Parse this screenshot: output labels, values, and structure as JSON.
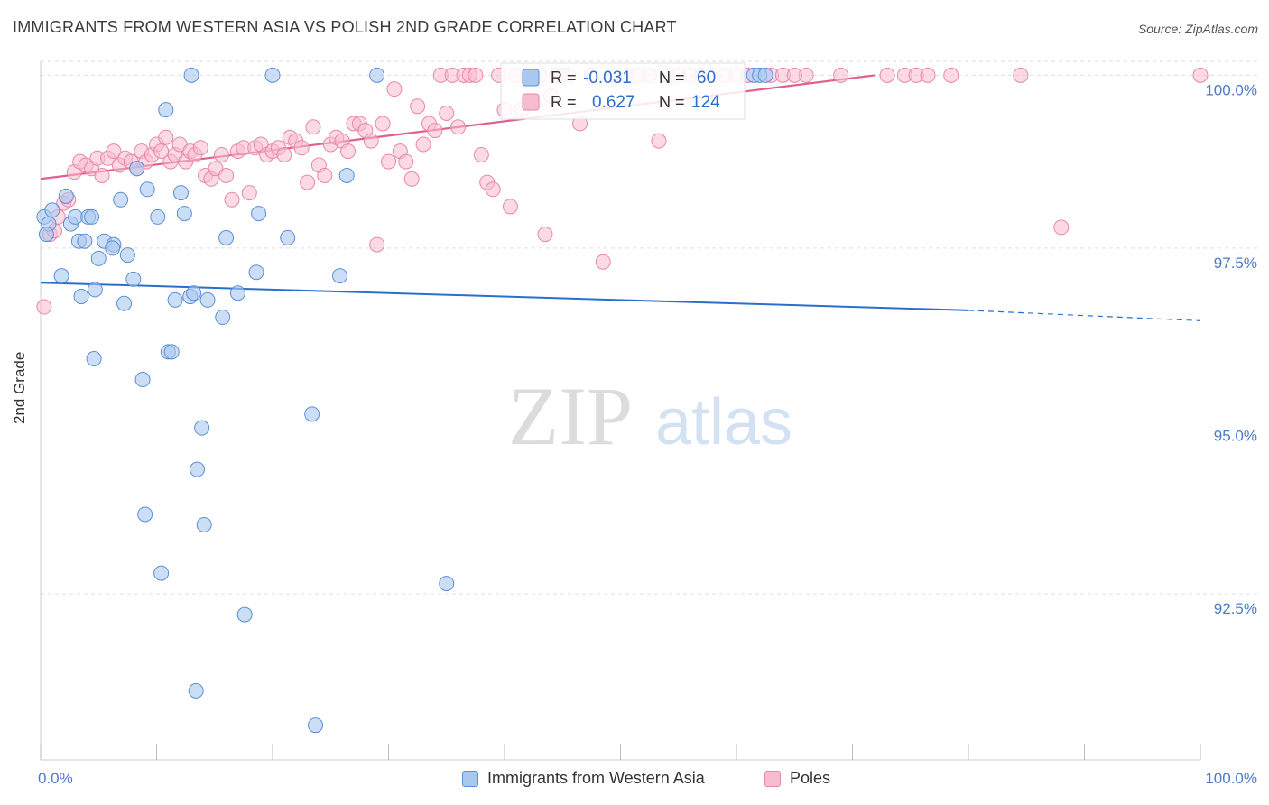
{
  "title": "IMMIGRANTS FROM WESTERN ASIA VS POLISH 2ND GRADE CORRELATION CHART",
  "source": "Source: ZipAtlas.com",
  "watermark": {
    "zip": "ZIP",
    "atlas": "atlas"
  },
  "colors": {
    "blue_fill": "#a9c8f0",
    "blue_stroke": "#5b8fd6",
    "blue_line": "#2a6fcc",
    "pink_fill": "#f8bcd0",
    "pink_stroke": "#e887a8",
    "pink_line": "#e0608f",
    "axis_text": "#4a7cc9",
    "grid": "#dddddd"
  },
  "legend": {
    "row1": {
      "r_label": "R =",
      "r_value": "-0.031",
      "n_label": "N =",
      "n_value": "60"
    },
    "row2": {
      "r_label": "R =",
      "r_value": "0.627",
      "n_label": "N =",
      "n_value": "124"
    }
  },
  "chart_data": {
    "type": "scatter",
    "title": "IMMIGRANTS FROM WESTERN ASIA VS POLISH 2ND GRADE CORRELATION CHART",
    "xlabel": "",
    "ylabel": "2nd Grade",
    "xlim": [
      0,
      100
    ],
    "ylim": [
      90.1,
      100.2
    ],
    "x_tick_labels": [
      "0.0%",
      "100.0%"
    ],
    "y_ticks": [
      92.5,
      95.0,
      97.5,
      100.0
    ],
    "y_tick_labels": [
      "92.5%",
      "95.0%",
      "97.5%",
      "100.0%"
    ],
    "series": [
      {
        "name": "Immigrants from Western Asia",
        "color": "blue",
        "trend": {
          "x0": 0,
          "y0": 97.0,
          "x1": 80,
          "y1": 96.6,
          "dash_to_x": 100,
          "dash_to_y": 96.45
        },
        "points": [
          [
            0.3,
            97.95
          ],
          [
            0.7,
            97.85
          ],
          [
            1.0,
            98.05
          ],
          [
            1.8,
            97.1
          ],
          [
            2.2,
            98.25
          ],
          [
            2.6,
            97.85
          ],
          [
            3.0,
            97.95
          ],
          [
            3.3,
            97.6
          ],
          [
            3.5,
            96.8
          ],
          [
            3.8,
            97.6
          ],
          [
            4.1,
            97.95
          ],
          [
            4.4,
            97.95
          ],
          [
            4.7,
            96.9
          ],
          [
            5.0,
            97.35
          ],
          [
            4.6,
            95.9
          ],
          [
            5.5,
            97.6
          ],
          [
            6.3,
            97.55
          ],
          [
            6.9,
            98.2
          ],
          [
            6.2,
            97.5
          ],
          [
            7.2,
            96.7
          ],
          [
            7.5,
            97.4
          ],
          [
            8.0,
            97.05
          ],
          [
            8.3,
            98.65
          ],
          [
            8.8,
            95.6
          ],
          [
            9.2,
            98.35
          ],
          [
            9.0,
            93.65
          ],
          [
            10.1,
            97.95
          ],
          [
            10.4,
            92.8
          ],
          [
            10.8,
            99.5
          ],
          [
            11.0,
            96.0
          ],
          [
            11.3,
            96.0
          ],
          [
            11.6,
            96.75
          ],
          [
            12.1,
            98.3
          ],
          [
            12.4,
            98.0
          ],
          [
            12.9,
            96.8
          ],
          [
            13.2,
            96.85
          ],
          [
            13.5,
            94.3
          ],
          [
            13.9,
            94.9
          ],
          [
            14.1,
            93.5
          ],
          [
            14.4,
            96.75
          ],
          [
            13.0,
            100.0
          ],
          [
            13.4,
            91.1
          ],
          [
            15.7,
            96.5
          ],
          [
            16.0,
            97.65
          ],
          [
            17.0,
            96.85
          ],
          [
            17.6,
            92.2
          ],
          [
            18.6,
            97.15
          ],
          [
            18.8,
            98.0
          ],
          [
            20.0,
            100.0
          ],
          [
            21.3,
            97.65
          ],
          [
            23.4,
            95.1
          ],
          [
            23.7,
            90.6
          ],
          [
            25.8,
            97.1
          ],
          [
            26.4,
            98.55
          ],
          [
            29.0,
            100.0
          ],
          [
            35.0,
            92.65
          ],
          [
            61.5,
            100.0
          ],
          [
            62.0,
            100.0
          ],
          [
            62.5,
            100.0
          ],
          [
            0.5,
            97.7
          ]
        ]
      },
      {
        "name": "Poles",
        "color": "pink",
        "trend": {
          "x0": 0,
          "y0": 98.5,
          "x1": 72,
          "y1": 100.0
        },
        "points": [
          [
            0.3,
            96.65
          ],
          [
            0.8,
            97.7
          ],
          [
            1.2,
            97.75
          ],
          [
            1.5,
            97.95
          ],
          [
            2.0,
            98.15
          ],
          [
            2.4,
            98.2
          ],
          [
            2.9,
            98.6
          ],
          [
            3.4,
            98.75
          ],
          [
            3.9,
            98.7
          ],
          [
            4.4,
            98.65
          ],
          [
            4.9,
            98.8
          ],
          [
            5.3,
            98.55
          ],
          [
            5.8,
            98.8
          ],
          [
            6.3,
            98.9
          ],
          [
            6.8,
            98.7
          ],
          [
            7.3,
            98.8
          ],
          [
            7.8,
            98.75
          ],
          [
            8.3,
            98.65
          ],
          [
            8.7,
            98.9
          ],
          [
            9.1,
            98.75
          ],
          [
            9.6,
            98.85
          ],
          [
            10.0,
            99.0
          ],
          [
            10.4,
            98.9
          ],
          [
            10.8,
            99.1
          ],
          [
            11.2,
            98.75
          ],
          [
            11.6,
            98.85
          ],
          [
            12.0,
            99.0
          ],
          [
            12.5,
            98.75
          ],
          [
            12.9,
            98.9
          ],
          [
            13.3,
            98.85
          ],
          [
            13.8,
            98.95
          ],
          [
            14.2,
            98.55
          ],
          [
            14.7,
            98.5
          ],
          [
            15.1,
            98.65
          ],
          [
            15.6,
            98.85
          ],
          [
            16.0,
            98.55
          ],
          [
            16.5,
            98.2
          ],
          [
            17.0,
            98.9
          ],
          [
            17.5,
            98.95
          ],
          [
            18.0,
            98.3
          ],
          [
            18.5,
            98.95
          ],
          [
            19.0,
            99.0
          ],
          [
            19.5,
            98.85
          ],
          [
            20.0,
            98.9
          ],
          [
            20.5,
            98.95
          ],
          [
            21.0,
            98.85
          ],
          [
            21.5,
            99.1
          ],
          [
            22.0,
            99.05
          ],
          [
            22.5,
            98.95
          ],
          [
            23.0,
            98.45
          ],
          [
            23.5,
            99.25
          ],
          [
            24.0,
            98.7
          ],
          [
            24.5,
            98.55
          ],
          [
            25.0,
            99.0
          ],
          [
            25.5,
            99.1
          ],
          [
            26.0,
            99.05
          ],
          [
            26.5,
            98.9
          ],
          [
            27.0,
            99.3
          ],
          [
            27.5,
            99.3
          ],
          [
            28.0,
            99.2
          ],
          [
            28.5,
            99.05
          ],
          [
            29.0,
            97.55
          ],
          [
            29.5,
            99.3
          ],
          [
            30.0,
            98.75
          ],
          [
            30.5,
            99.8
          ],
          [
            31.0,
            98.9
          ],
          [
            31.5,
            98.75
          ],
          [
            32.0,
            98.5
          ],
          [
            32.5,
            99.55
          ],
          [
            33.0,
            99.0
          ],
          [
            33.5,
            99.3
          ],
          [
            34.0,
            99.2
          ],
          [
            34.5,
            100.0
          ],
          [
            35.0,
            99.45
          ],
          [
            35.5,
            100.0
          ],
          [
            36.0,
            99.25
          ],
          [
            36.5,
            100.0
          ],
          [
            37.0,
            100.0
          ],
          [
            37.5,
            100.0
          ],
          [
            38.0,
            98.85
          ],
          [
            38.5,
            98.45
          ],
          [
            39.0,
            98.35
          ],
          [
            39.5,
            100.0
          ],
          [
            40.0,
            99.5
          ],
          [
            40.5,
            98.1
          ],
          [
            41.0,
            100.0
          ],
          [
            41.5,
            99.5
          ],
          [
            42.0,
            100.0
          ],
          [
            42.5,
            99.6
          ],
          [
            43.0,
            100.0
          ],
          [
            43.5,
            97.7
          ],
          [
            44.0,
            99.7
          ],
          [
            44.5,
            100.0
          ],
          [
            45.5,
            100.0
          ],
          [
            46.5,
            99.3
          ],
          [
            47.5,
            100.0
          ],
          [
            48.5,
            97.3
          ],
          [
            49.5,
            100.0
          ],
          [
            50.5,
            100.0
          ],
          [
            51.5,
            100.0
          ],
          [
            52.5,
            100.0
          ],
          [
            53.3,
            99.05
          ],
          [
            54.0,
            100.0
          ],
          [
            55.0,
            100.0
          ],
          [
            56.0,
            100.0
          ],
          [
            57.0,
            100.0
          ],
          [
            58.0,
            100.0
          ],
          [
            59.0,
            100.0
          ],
          [
            60.0,
            100.0
          ],
          [
            61.0,
            100.0
          ],
          [
            63.0,
            100.0
          ],
          [
            66.0,
            100.0
          ],
          [
            69.0,
            100.0
          ],
          [
            73.0,
            100.0
          ],
          [
            74.5,
            100.0
          ],
          [
            75.5,
            100.0
          ],
          [
            76.5,
            100.0
          ],
          [
            78.5,
            100.0
          ],
          [
            84.5,
            100.0
          ],
          [
            88.0,
            97.8
          ],
          [
            100.0,
            100.0
          ],
          [
            64.0,
            100.0
          ],
          [
            65.0,
            100.0
          ],
          [
            45.0,
            100.0
          ]
        ]
      }
    ]
  },
  "bottom_legend": {
    "series1": "Immigrants from Western Asia",
    "series2": "Poles"
  }
}
